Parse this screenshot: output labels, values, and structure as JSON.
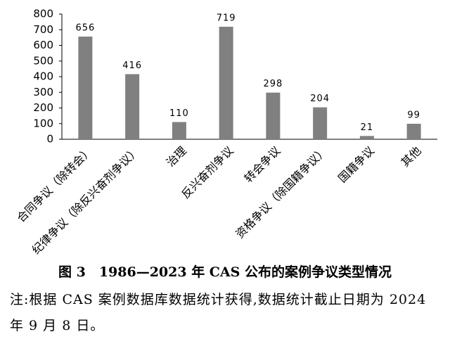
{
  "chart_data": {
    "type": "bar",
    "title": "图 3　1986—2023 年 CAS 公布的案例争议类型情况",
    "note": "注:根据 CAS 案例数据库数据统计获得,数据统计截止日期为 2024 年 9 月 8 日。",
    "categories": [
      "合同争议（除转会）",
      "纪律争议（除反兴奋剂争议）",
      "治理",
      "反兴奋剂争议",
      "转会争议",
      "资格争议（除国籍争议）",
      "国籍争议",
      "其他"
    ],
    "values": [
      656,
      416,
      110,
      719,
      298,
      204,
      21,
      99
    ],
    "color": "#808080",
    "ylim": [
      0,
      800
    ],
    "yticks": [
      0,
      100,
      200,
      300,
      400,
      500,
      600,
      700,
      800
    ],
    "grid": false
  }
}
